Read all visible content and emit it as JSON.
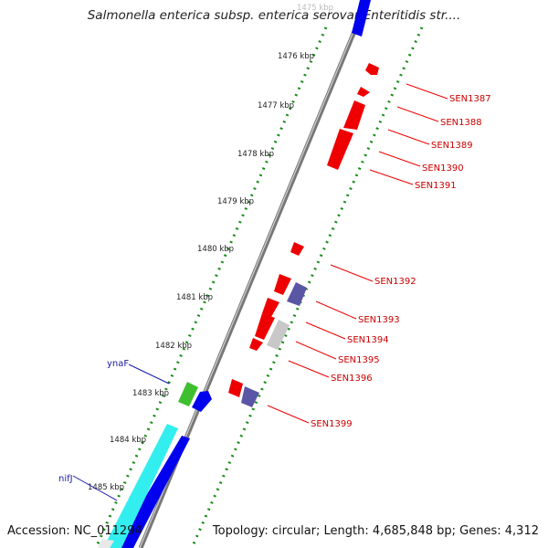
{
  "title": "Salmonella enterica subsp. enterica serovar Enteritidis str....",
  "footer": {
    "accession": "Accession: NC_011294",
    "topology": "Topology: circular; Length: 4,685,848 bp; Genes: 4,312"
  },
  "ticks": [
    "1475 kbp",
    "1476 kbp",
    "1477 kbp",
    "1478 kbp",
    "1479 kbp",
    "1480 kbp",
    "1481 kbp",
    "1482 kbp",
    "1483 kbp",
    "1484 kbp",
    "1485 kbp"
  ],
  "gene_labels_red": [
    "SEN1387",
    "SEN1388",
    "SEN1389",
    "SEN1390",
    "SEN1391",
    "SEN1392",
    "SEN1393",
    "SEN1394",
    "SEN1395",
    "SEN1396",
    "SEN1399"
  ],
  "gene_labels_blue": [
    "ynaF",
    "nifJ"
  ],
  "colors": {
    "forward": "#0000ee",
    "reverse": "#ee0000",
    "pseudo": "#5a56a6",
    "rna": "#3fbf2f",
    "operon": "#33eeee",
    "unknown": "#c8c8c8",
    "gc_skew": "#1a8c1a",
    "backbone": "#7a7a7a",
    "label_red": "#cc0000",
    "label_blue": "#1a1aaa"
  }
}
